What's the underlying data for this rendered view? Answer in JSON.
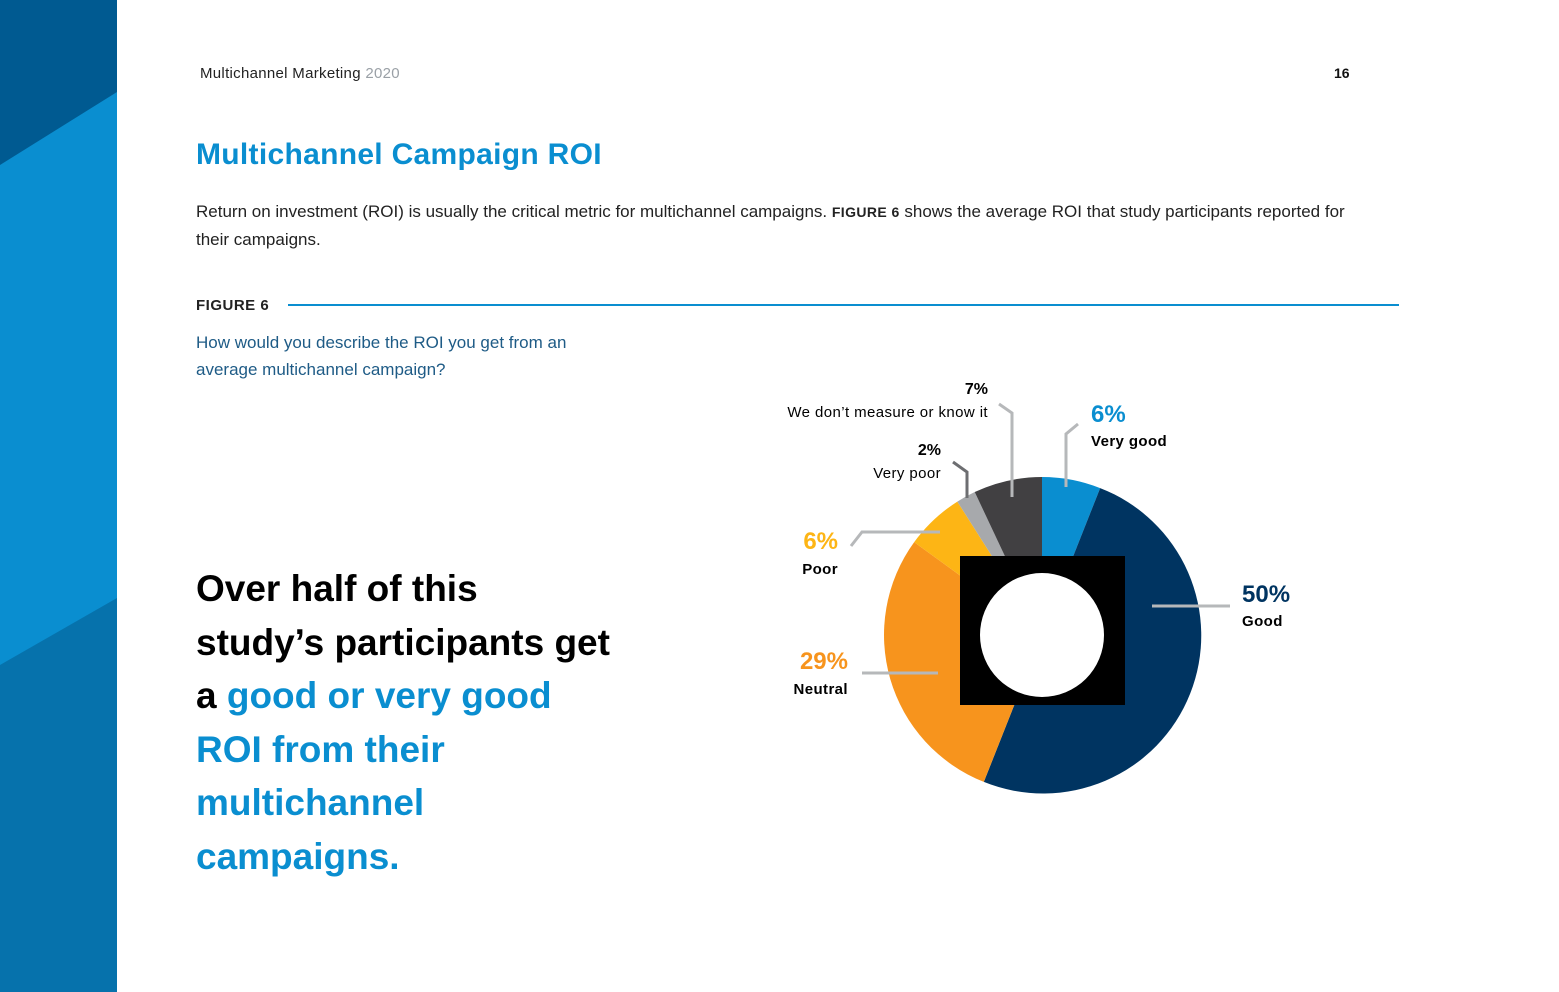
{
  "header": {
    "doc_title": "Multichannel Marketing",
    "year": "2020",
    "page_number": "16"
  },
  "title": "Multichannel Campaign ROI",
  "intro": {
    "before": "Return on investment (ROI) is usually the critical metric for multichannel campaigns.",
    "figure_ref": "FIGURE 6",
    "after": "shows the average ROI that study participants reported for their campaigns."
  },
  "figure": {
    "label": "FIGURE 6",
    "question": "How would you describe the ROI you get from an average multichannel campaign?"
  },
  "callout": {
    "plain": "Over half of this study’s participants get a",
    "highlight": "good or very good ROI from their multichannel campaigns."
  },
  "colors": {
    "accent": "#0a8ed0",
    "sidebar_dark": "#005a91",
    "sidebar_light": "#0a8ed0"
  },
  "chart_data": {
    "type": "pie",
    "variant": "donut",
    "start_angle_deg": 0,
    "direction": "clockwise",
    "slices": [
      {
        "label": "Very good",
        "value": 6,
        "pct_label": "6%",
        "color": "#0a8ed0",
        "label_color": "#0a8ed0"
      },
      {
        "label": "Good",
        "value": 50,
        "pct_label": "50%",
        "color": "#003461",
        "label_color": "#003461"
      },
      {
        "label": "Neutral",
        "value": 29,
        "pct_label": "29%",
        "color": "#f7941d",
        "label_color": "#f7941d"
      },
      {
        "label": "Poor",
        "value": 6,
        "pct_label": "6%",
        "color": "#fdb515",
        "label_color": "#fdb515"
      },
      {
        "label": "Very poor",
        "value": 2,
        "pct_label": "2%",
        "color": "#a7a9ac",
        "label_color": "#000000"
      },
      {
        "label": "We don’t measure or know it",
        "value": 7,
        "pct_label": "7%",
        "color": "#414042",
        "label_color": "#000000"
      }
    ]
  }
}
